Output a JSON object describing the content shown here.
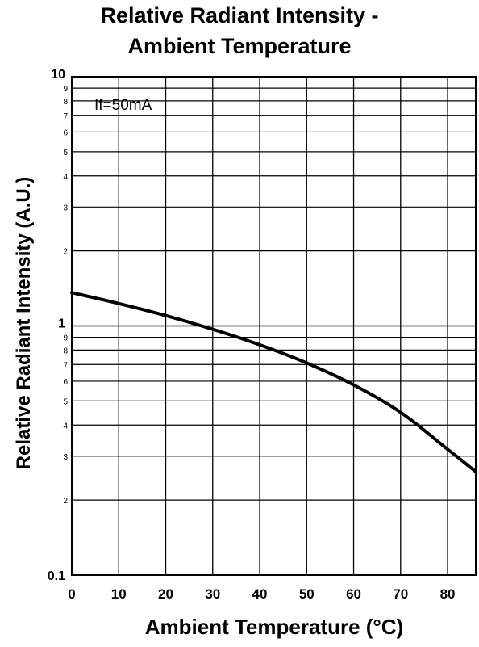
{
  "chart_data": {
    "type": "line",
    "title": "Relative Radiant Intensity -\nAmbient Temperature",
    "title_lines": [
      "Relative Radiant Intensity -",
      "Ambient Temperature"
    ],
    "xlabel": "Ambient Temperature (°C)",
    "ylabel": "Relative Radiant Intensity (A.U.)",
    "xlim": [
      0,
      86
    ],
    "ylim": [
      0.1,
      10
    ],
    "yscale": "log",
    "grid": true,
    "annotation": "If=50mA",
    "x_ticks": [
      0,
      10,
      20,
      30,
      40,
      50,
      60,
      70,
      80
    ],
    "x_tick_labels": [
      "0",
      "10",
      "20",
      "30",
      "40",
      "50",
      "60",
      "70",
      "80"
    ],
    "y_major_ticks": [
      {
        "value": 0.1,
        "label": "0.1"
      },
      {
        "value": 1,
        "label": "1"
      },
      {
        "value": 10,
        "label": "10"
      }
    ],
    "y_minor_ticks": [
      {
        "value": 0.2,
        "label": "2"
      },
      {
        "value": 0.3,
        "label": "3"
      },
      {
        "value": 0.4,
        "label": "4"
      },
      {
        "value": 0.5,
        "label": "5"
      },
      {
        "value": 0.6,
        "label": "6"
      },
      {
        "value": 0.7,
        "label": "7"
      },
      {
        "value": 0.8,
        "label": "8"
      },
      {
        "value": 0.9,
        "label": "9"
      },
      {
        "value": 2,
        "label": "2"
      },
      {
        "value": 3,
        "label": "3"
      },
      {
        "value": 4,
        "label": "4"
      },
      {
        "value": 5,
        "label": "5"
      },
      {
        "value": 6,
        "label": "6"
      },
      {
        "value": 7,
        "label": "7"
      },
      {
        "value": 8,
        "label": "8"
      },
      {
        "value": 9,
        "label": "9"
      }
    ],
    "series": [
      {
        "x": [
          0,
          10,
          20,
          30,
          40,
          50,
          60,
          70,
          80,
          86
        ],
        "y": [
          1.36,
          1.23,
          1.1,
          0.97,
          0.84,
          0.71,
          0.58,
          0.45,
          0.32,
          0.26
        ],
        "color": "#000000"
      }
    ]
  }
}
